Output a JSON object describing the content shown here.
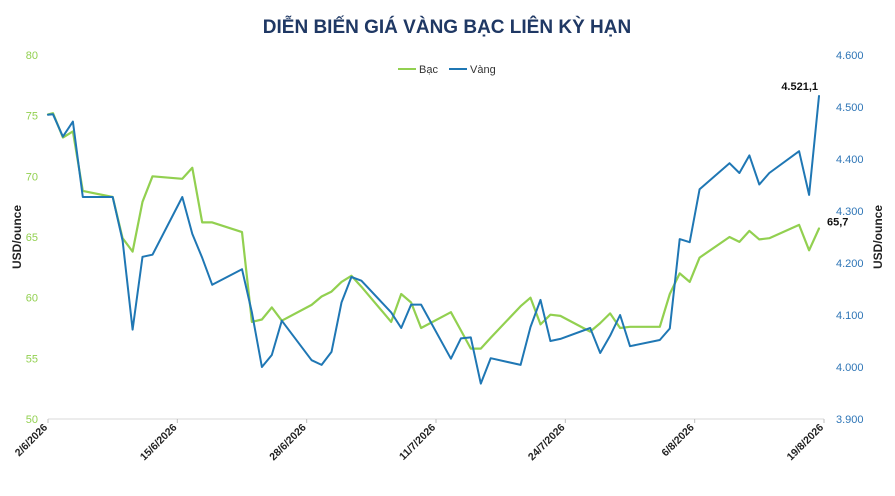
{
  "chart_data": {
    "type": "line",
    "title": "DIỄN BIẾN GIÁ VÀNG BẠC LIÊN KỲ HẠN",
    "ylabel_left": "USD/ounce",
    "ylabel_right": "USD/ounce",
    "ylim_left": [
      50,
      80
    ],
    "ylim_right": [
      3900,
      4600
    ],
    "yticks_left": [
      "80",
      "75",
      "70",
      "65",
      "60",
      "55",
      "50"
    ],
    "yticks_left_values": [
      80,
      75,
      70,
      65,
      60,
      55,
      50
    ],
    "yticks_right": [
      "4.600",
      "4.500",
      "4.400",
      "4.300",
      "4.200",
      "4.100",
      "4.000",
      "3.900"
    ],
    "yticks_right_values": [
      4600,
      4500,
      4400,
      4300,
      4200,
      4100,
      4000,
      3900
    ],
    "x_range": [
      0,
      78
    ],
    "xtick_labels": [
      "2/6/2026",
      "15/6/2026",
      "28/6/2026",
      "11/7/2026",
      "24/7/2026",
      "6/8/2026",
      "19/8/2026"
    ],
    "xtick_positions": [
      0,
      13,
      26,
      39,
      52,
      65,
      78
    ],
    "legend_placement": "top-center",
    "grid": false,
    "series": [
      {
        "name": "Bạc",
        "axis": "left",
        "color": "#92d050",
        "x": [
          0,
          0.5,
          1.5,
          2.5,
          3.5,
          6.5,
          7.5,
          8.5,
          9.5,
          10.5,
          13.5,
          14.5,
          15.5,
          16.5,
          19.5,
          20.5,
          21.5,
          22.5,
          23.5,
          26.5,
          27.5,
          28.5,
          29.5,
          30.5,
          31.5,
          34.5,
          35.5,
          36.5,
          37.5,
          40.5,
          41.5,
          42.5,
          43.5,
          44.5,
          47.5,
          48.5,
          49.5,
          50.5,
          51.5,
          54.5,
          55.5,
          56.5,
          57.5,
          58.5,
          61.5,
          62.5,
          63.5,
          64.5,
          65.5,
          68.5,
          69.5,
          70.5,
          71.5,
          72.5,
          75.5,
          76.5,
          77.5
        ],
        "values": [
          75.1,
          75.2,
          73.2,
          73.7,
          68.8,
          68.3,
          64.9,
          63.8,
          67.9,
          70.0,
          69.8,
          70.7,
          66.2,
          66.2,
          65.4,
          58.0,
          58.2,
          59.2,
          58.1,
          59.4,
          60.1,
          60.5,
          61.3,
          61.8,
          60.9,
          58.0,
          60.3,
          59.6,
          57.5,
          58.8,
          57.3,
          55.8,
          55.8,
          56.7,
          59.3,
          60.0,
          57.8,
          58.6,
          58.5,
          57.2,
          57.9,
          58.7,
          57.5,
          57.6,
          57.6,
          60.3,
          62.0,
          61.3,
          63.3,
          65.0,
          64.6,
          65.5,
          64.8,
          64.9,
          66.0,
          63.9,
          65.7
        ]
      },
      {
        "name": "Vàng",
        "axis": "right",
        "color": "#1f77b4",
        "x": [
          0,
          0.5,
          1.5,
          2.5,
          3.5,
          6.5,
          7.5,
          8.5,
          9.5,
          10.5,
          13.5,
          14.5,
          15.5,
          16.5,
          19.5,
          20.5,
          21.5,
          22.5,
          23.5,
          26.5,
          27.5,
          28.5,
          29.5,
          30.5,
          31.5,
          34.5,
          35.5,
          36.5,
          37.5,
          40.5,
          41.5,
          42.5,
          43.5,
          44.5,
          47.5,
          48.5,
          49.5,
          50.5,
          51.5,
          54.5,
          55.5,
          56.5,
          57.5,
          58.5,
          61.5,
          62.5,
          63.5,
          64.5,
          65.5,
          68.5,
          69.5,
          70.5,
          71.5,
          72.5,
          75.5,
          76.5,
          77.5
        ],
        "values": [
          4485,
          4486,
          4443,
          4472,
          4327,
          4327,
          4243,
          4072,
          4212,
          4216,
          4327,
          4256,
          4210,
          4158,
          4188,
          4105,
          4000,
          4023,
          4089,
          4013,
          4004,
          4029,
          4124,
          4173,
          4166,
          4105,
          4075,
          4120,
          4120,
          4016,
          4055,
          4057,
          3968,
          4017,
          4004,
          4077,
          4129,
          4050,
          4054,
          4075,
          4027,
          4060,
          4100,
          4040,
          4052,
          4074,
          4246,
          4240,
          4342,
          4392,
          4373,
          4407,
          4351,
          4373,
          4415,
          4331,
          4521.1
        ]
      }
    ],
    "annotations": [
      {
        "text": "4.521,1",
        "series": "Vàng"
      },
      {
        "text": "65,7",
        "series": "Bạc"
      }
    ]
  }
}
